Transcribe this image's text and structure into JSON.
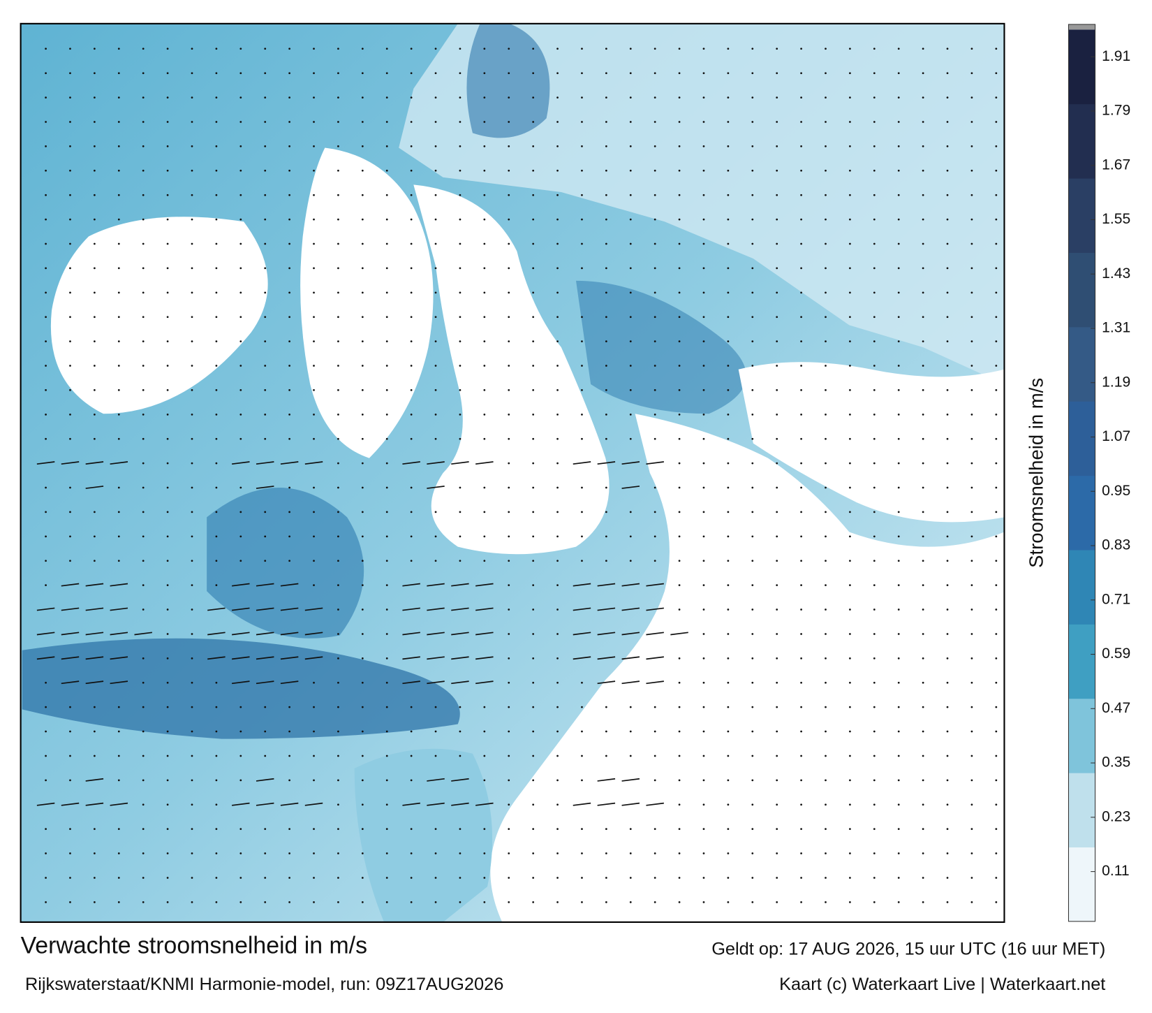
{
  "title": "Verwachte stroomsnelheid in m/s",
  "subtitle": "Rijkswaterstaat/KNMI Harmonie-model, run: 09Z17AUG2026",
  "valid_time": "Geldt op: 17 AUG 2026, 15 uur UTC (16 uur MET)",
  "credit": "Kaart (c) Waterkaart Live | Waterkaart.net",
  "colorbar": {
    "label": "Stroomsnelheid in m/s",
    "range": [
      0,
      1.97
    ],
    "ticks": [
      0.11,
      0.23,
      0.35,
      0.47,
      0.59,
      0.71,
      0.83,
      0.95,
      1.07,
      1.19,
      1.31,
      1.43,
      1.55,
      1.67,
      1.79,
      1.91
    ],
    "colors": [
      "#eef6fa",
      "#bfe0ec",
      "#7fc4db",
      "#3f9fc2",
      "#2f86b5",
      "#2c6aa8",
      "#2d5f99",
      "#345a86",
      "#2f4e73",
      "#2a3f64",
      "#222e50",
      "#1a2140"
    ]
  }
}
